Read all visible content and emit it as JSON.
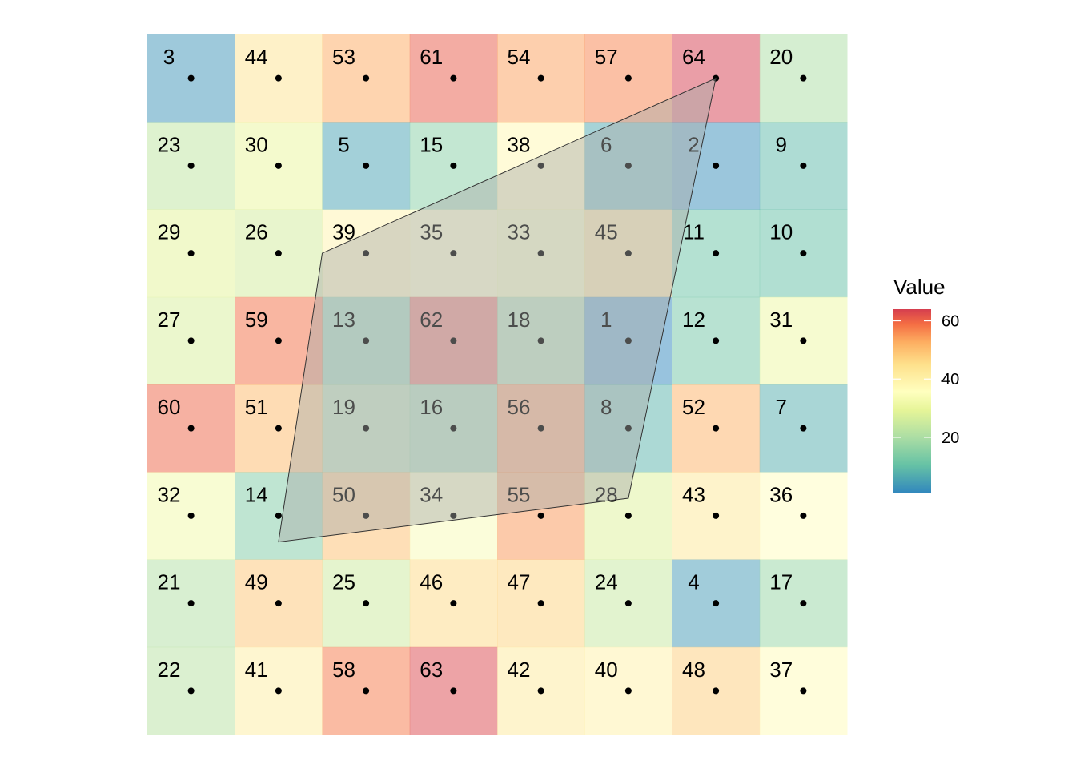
{
  "chart_data": {
    "type": "heatmap",
    "title": "",
    "xlabel": "",
    "ylabel": "",
    "grid": false,
    "legend_placement": "right",
    "grid_size": [
      8,
      8
    ],
    "values": [
      [
        3,
        44,
        53,
        61,
        54,
        57,
        64,
        20
      ],
      [
        23,
        30,
        5,
        15,
        38,
        6,
        2,
        9
      ],
      [
        29,
        26,
        39,
        35,
        33,
        45,
        11,
        10
      ],
      [
        27,
        59,
        13,
        62,
        18,
        1,
        12,
        31
      ],
      [
        60,
        51,
        19,
        16,
        56,
        8,
        52,
        7
      ],
      [
        32,
        14,
        50,
        34,
        55,
        28,
        43,
        36
      ],
      [
        21,
        49,
        25,
        46,
        47,
        24,
        4,
        17
      ],
      [
        22,
        41,
        58,
        63,
        42,
        40,
        48,
        37
      ]
    ],
    "value_range": [
      1,
      64
    ],
    "colorscale": "Spectral",
    "cell_alpha": 0.5,
    "points": "cell centers",
    "polygon": {
      "vertices": [
        [
          2.0,
          2.5
        ],
        [
          6.5,
          0.5
        ],
        [
          5.5,
          5.3
        ],
        [
          1.5,
          5.8
        ]
      ],
      "fill": "#a9aaa9",
      "fill_opacity": 0.45,
      "stroke": "#333333"
    },
    "legend": {
      "title": "Value",
      "ticks": [
        20,
        40,
        60
      ],
      "range": [
        1,
        64
      ]
    }
  }
}
